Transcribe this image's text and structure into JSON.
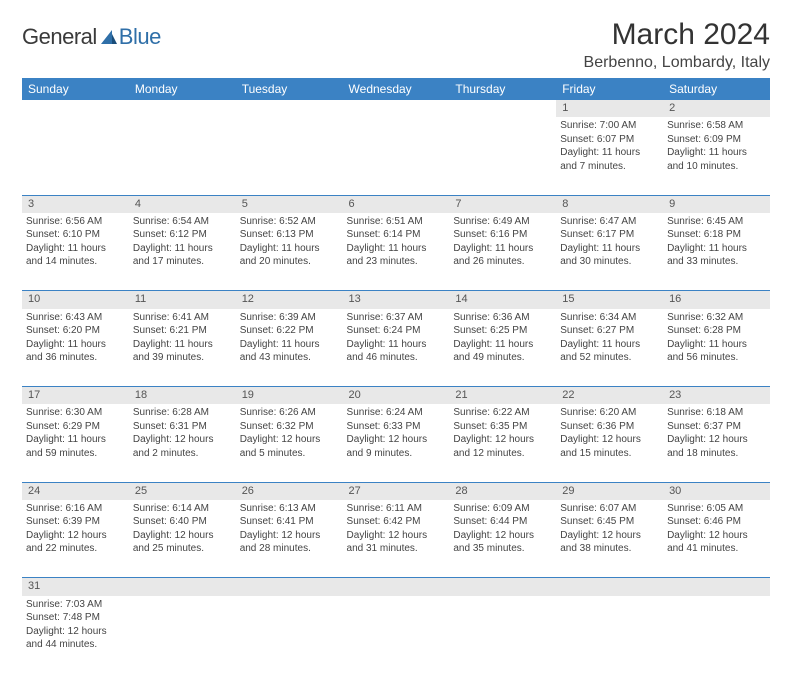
{
  "logo": {
    "general": "General",
    "blue": "Blue"
  },
  "title": "March 2024",
  "location": "Berbenno, Lombardy, Italy",
  "colors": {
    "header_bg": "#3b82c4",
    "header_text": "#ffffff",
    "daynum_bg": "#e8e8e8",
    "cell_border": "#3b82c4",
    "logo_blue": "#2f6fa8"
  },
  "weekdays": [
    "Sunday",
    "Monday",
    "Tuesday",
    "Wednesday",
    "Thursday",
    "Friday",
    "Saturday"
  ],
  "weeks": [
    [
      null,
      null,
      null,
      null,
      null,
      {
        "n": "1",
        "sr": "Sunrise: 7:00 AM",
        "ss": "Sunset: 6:07 PM",
        "dl1": "Daylight: 11 hours",
        "dl2": "and 7 minutes."
      },
      {
        "n": "2",
        "sr": "Sunrise: 6:58 AM",
        "ss": "Sunset: 6:09 PM",
        "dl1": "Daylight: 11 hours",
        "dl2": "and 10 minutes."
      }
    ],
    [
      {
        "n": "3",
        "sr": "Sunrise: 6:56 AM",
        "ss": "Sunset: 6:10 PM",
        "dl1": "Daylight: 11 hours",
        "dl2": "and 14 minutes."
      },
      {
        "n": "4",
        "sr": "Sunrise: 6:54 AM",
        "ss": "Sunset: 6:12 PM",
        "dl1": "Daylight: 11 hours",
        "dl2": "and 17 minutes."
      },
      {
        "n": "5",
        "sr": "Sunrise: 6:52 AM",
        "ss": "Sunset: 6:13 PM",
        "dl1": "Daylight: 11 hours",
        "dl2": "and 20 minutes."
      },
      {
        "n": "6",
        "sr": "Sunrise: 6:51 AM",
        "ss": "Sunset: 6:14 PM",
        "dl1": "Daylight: 11 hours",
        "dl2": "and 23 minutes."
      },
      {
        "n": "7",
        "sr": "Sunrise: 6:49 AM",
        "ss": "Sunset: 6:16 PM",
        "dl1": "Daylight: 11 hours",
        "dl2": "and 26 minutes."
      },
      {
        "n": "8",
        "sr": "Sunrise: 6:47 AM",
        "ss": "Sunset: 6:17 PM",
        "dl1": "Daylight: 11 hours",
        "dl2": "and 30 minutes."
      },
      {
        "n": "9",
        "sr": "Sunrise: 6:45 AM",
        "ss": "Sunset: 6:18 PM",
        "dl1": "Daylight: 11 hours",
        "dl2": "and 33 minutes."
      }
    ],
    [
      {
        "n": "10",
        "sr": "Sunrise: 6:43 AM",
        "ss": "Sunset: 6:20 PM",
        "dl1": "Daylight: 11 hours",
        "dl2": "and 36 minutes."
      },
      {
        "n": "11",
        "sr": "Sunrise: 6:41 AM",
        "ss": "Sunset: 6:21 PM",
        "dl1": "Daylight: 11 hours",
        "dl2": "and 39 minutes."
      },
      {
        "n": "12",
        "sr": "Sunrise: 6:39 AM",
        "ss": "Sunset: 6:22 PM",
        "dl1": "Daylight: 11 hours",
        "dl2": "and 43 minutes."
      },
      {
        "n": "13",
        "sr": "Sunrise: 6:37 AM",
        "ss": "Sunset: 6:24 PM",
        "dl1": "Daylight: 11 hours",
        "dl2": "and 46 minutes."
      },
      {
        "n": "14",
        "sr": "Sunrise: 6:36 AM",
        "ss": "Sunset: 6:25 PM",
        "dl1": "Daylight: 11 hours",
        "dl2": "and 49 minutes."
      },
      {
        "n": "15",
        "sr": "Sunrise: 6:34 AM",
        "ss": "Sunset: 6:27 PM",
        "dl1": "Daylight: 11 hours",
        "dl2": "and 52 minutes."
      },
      {
        "n": "16",
        "sr": "Sunrise: 6:32 AM",
        "ss": "Sunset: 6:28 PM",
        "dl1": "Daylight: 11 hours",
        "dl2": "and 56 minutes."
      }
    ],
    [
      {
        "n": "17",
        "sr": "Sunrise: 6:30 AM",
        "ss": "Sunset: 6:29 PM",
        "dl1": "Daylight: 11 hours",
        "dl2": "and 59 minutes."
      },
      {
        "n": "18",
        "sr": "Sunrise: 6:28 AM",
        "ss": "Sunset: 6:31 PM",
        "dl1": "Daylight: 12 hours",
        "dl2": "and 2 minutes."
      },
      {
        "n": "19",
        "sr": "Sunrise: 6:26 AM",
        "ss": "Sunset: 6:32 PM",
        "dl1": "Daylight: 12 hours",
        "dl2": "and 5 minutes."
      },
      {
        "n": "20",
        "sr": "Sunrise: 6:24 AM",
        "ss": "Sunset: 6:33 PM",
        "dl1": "Daylight: 12 hours",
        "dl2": "and 9 minutes."
      },
      {
        "n": "21",
        "sr": "Sunrise: 6:22 AM",
        "ss": "Sunset: 6:35 PM",
        "dl1": "Daylight: 12 hours",
        "dl2": "and 12 minutes."
      },
      {
        "n": "22",
        "sr": "Sunrise: 6:20 AM",
        "ss": "Sunset: 6:36 PM",
        "dl1": "Daylight: 12 hours",
        "dl2": "and 15 minutes."
      },
      {
        "n": "23",
        "sr": "Sunrise: 6:18 AM",
        "ss": "Sunset: 6:37 PM",
        "dl1": "Daylight: 12 hours",
        "dl2": "and 18 minutes."
      }
    ],
    [
      {
        "n": "24",
        "sr": "Sunrise: 6:16 AM",
        "ss": "Sunset: 6:39 PM",
        "dl1": "Daylight: 12 hours",
        "dl2": "and 22 minutes."
      },
      {
        "n": "25",
        "sr": "Sunrise: 6:14 AM",
        "ss": "Sunset: 6:40 PM",
        "dl1": "Daylight: 12 hours",
        "dl2": "and 25 minutes."
      },
      {
        "n": "26",
        "sr": "Sunrise: 6:13 AM",
        "ss": "Sunset: 6:41 PM",
        "dl1": "Daylight: 12 hours",
        "dl2": "and 28 minutes."
      },
      {
        "n": "27",
        "sr": "Sunrise: 6:11 AM",
        "ss": "Sunset: 6:42 PM",
        "dl1": "Daylight: 12 hours",
        "dl2": "and 31 minutes."
      },
      {
        "n": "28",
        "sr": "Sunrise: 6:09 AM",
        "ss": "Sunset: 6:44 PM",
        "dl1": "Daylight: 12 hours",
        "dl2": "and 35 minutes."
      },
      {
        "n": "29",
        "sr": "Sunrise: 6:07 AM",
        "ss": "Sunset: 6:45 PM",
        "dl1": "Daylight: 12 hours",
        "dl2": "and 38 minutes."
      },
      {
        "n": "30",
        "sr": "Sunrise: 6:05 AM",
        "ss": "Sunset: 6:46 PM",
        "dl1": "Daylight: 12 hours",
        "dl2": "and 41 minutes."
      }
    ],
    [
      {
        "n": "31",
        "sr": "Sunrise: 7:03 AM",
        "ss": "Sunset: 7:48 PM",
        "dl1": "Daylight: 12 hours",
        "dl2": "and 44 minutes."
      },
      null,
      null,
      null,
      null,
      null,
      null
    ]
  ]
}
